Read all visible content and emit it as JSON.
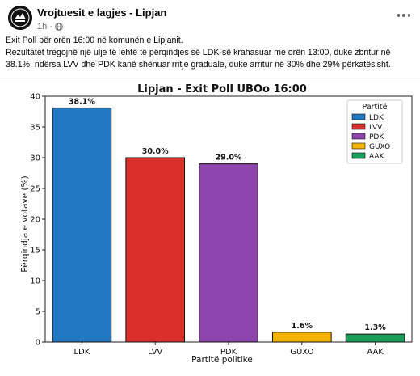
{
  "post": {
    "page_name": "Vrojtuesit e lagjes - Lipjan",
    "time": "1h",
    "separator": "·",
    "text_line1": "Exit Poll për orën 16:00 në komunën e Lipjanit.",
    "text_line2": "Rezultatet tregojnë një ulje të lehtë të përqindjes së LDK-së krahasuar me orën 13:00, duke zbritur në 38.1%, ndërsa LVV dhe PDK kanë shënuar rritje graduale, duke arritur në 30% dhe 29% përkatësisht.",
    "icons": [
      "avatar-logo",
      "globe-icon",
      "more-options-icon"
    ]
  },
  "chart_data": {
    "type": "bar",
    "title": "Lipjan - Exit Poll UBOo 16:00",
    "xlabel": "Partitë politike",
    "ylabel": "Përqindja e votave (%)",
    "categories": [
      "LDK",
      "LVV",
      "PDK",
      "GUXO",
      "AAK"
    ],
    "values": [
      38.1,
      30.0,
      29.0,
      1.6,
      1.3
    ],
    "value_labels": [
      "38.1%",
      "30.0%",
      "29.0%",
      "1.6%",
      "1.3%"
    ],
    "colors": [
      "#1f78c2",
      "#d9302c",
      "#8e44ad",
      "#f5b301",
      "#18a05a"
    ],
    "ylim": [
      0,
      40
    ],
    "yticks": [
      0,
      5,
      10,
      15,
      20,
      25,
      30,
      35,
      40
    ],
    "grid": true,
    "legend": {
      "title": "Partitë",
      "placement": "top-right",
      "entries": [
        "LDK",
        "LVV",
        "PDK",
        "GUXO",
        "AAK"
      ]
    }
  }
}
